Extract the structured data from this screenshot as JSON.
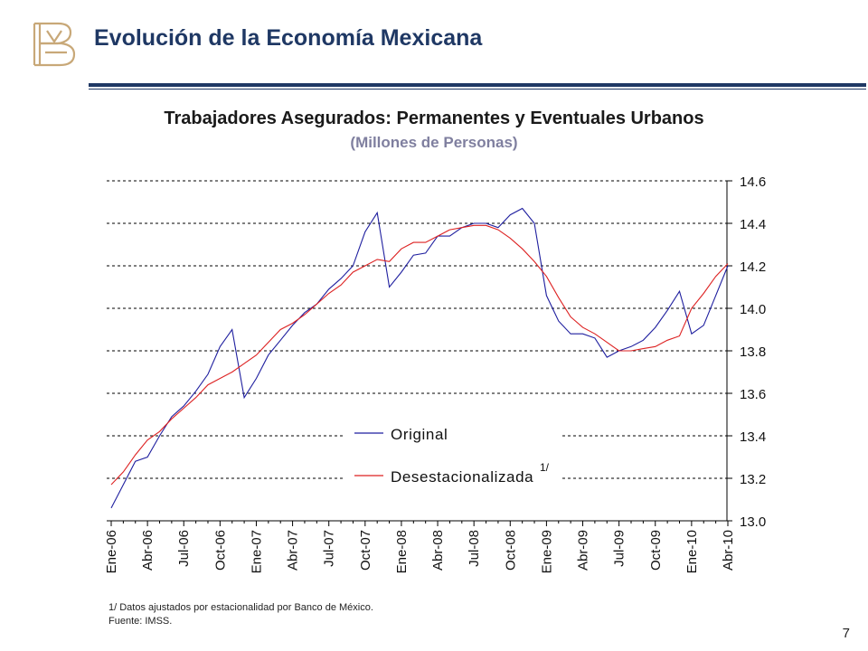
{
  "header": {
    "title": "Evolución de la Economía Mexicana",
    "logo_icon": "banco-de-mexico-monogram-icon",
    "accent_color": "#1f3864"
  },
  "chart_data": {
    "type": "line",
    "title": "Trabajadores  Asegurados: Permanentes y Eventuales Urbanos",
    "subtitle": "(Millones de Personas)",
    "ylim": [
      13.0,
      14.6
    ],
    "yticks": [
      "14.6",
      "14.4",
      "14.2",
      "14.0",
      "13.8",
      "13.6",
      "13.4",
      "13.2",
      "13.0"
    ],
    "y_axis_side": "right",
    "grid": "horizontal-dashed",
    "legend_placement": "bottom-left",
    "x_tick_labels": [
      "Ene-06",
      "Abr-06",
      "Jul-06",
      "Oct-06",
      "Ene-07",
      "Abr-07",
      "Jul-07",
      "Oct-07",
      "Ene-08",
      "Abr-08",
      "Jul-08",
      "Oct-08",
      "Ene-09",
      "Abr-09",
      "Jul-09",
      "Oct-09",
      "Ene-10",
      "Abr-10"
    ],
    "x": [
      "Ene-06",
      "Feb-06",
      "Mar-06",
      "Abr-06",
      "May-06",
      "Jun-06",
      "Jul-06",
      "Ago-06",
      "Sep-06",
      "Oct-06",
      "Nov-06",
      "Dic-06",
      "Ene-07",
      "Feb-07",
      "Mar-07",
      "Abr-07",
      "May-07",
      "Jun-07",
      "Jul-07",
      "Ago-07",
      "Sep-07",
      "Oct-07",
      "Nov-07",
      "Dic-07",
      "Ene-08",
      "Feb-08",
      "Mar-08",
      "Abr-08",
      "May-08",
      "Jun-08",
      "Jul-08",
      "Ago-08",
      "Sep-08",
      "Oct-08",
      "Nov-08",
      "Dic-08",
      "Ene-09",
      "Feb-09",
      "Mar-09",
      "Abr-09",
      "May-09",
      "Jun-09",
      "Jul-09",
      "Ago-09",
      "Sep-09",
      "Oct-09",
      "Nov-09",
      "Dic-09",
      "Ene-10",
      "Feb-10",
      "Mar-10",
      "Abr-10"
    ],
    "series": [
      {
        "name": "Original",
        "color": "#1f1f9f",
        "values": [
          13.06,
          13.17,
          13.28,
          13.3,
          13.4,
          13.49,
          13.54,
          13.61,
          13.69,
          13.82,
          13.9,
          13.58,
          13.67,
          13.78,
          13.85,
          13.92,
          13.98,
          14.02,
          14.09,
          14.14,
          14.2,
          14.36,
          14.45,
          14.1,
          14.17,
          14.25,
          14.26,
          14.34,
          14.34,
          14.38,
          14.4,
          14.4,
          14.38,
          14.44,
          14.47,
          14.4,
          14.06,
          13.94,
          13.88,
          13.88,
          13.86,
          13.77,
          13.8,
          13.82,
          13.85,
          13.91,
          13.99,
          14.08,
          13.88,
          13.92,
          14.06,
          14.2
        ]
      },
      {
        "name": "Desestacionalizada",
        "color": "#dd2222",
        "values": [
          13.17,
          13.23,
          13.31,
          13.38,
          13.42,
          13.48,
          13.53,
          13.58,
          13.64,
          13.67,
          13.7,
          13.74,
          13.78,
          13.84,
          13.9,
          13.93,
          13.97,
          14.02,
          14.07,
          14.11,
          14.17,
          14.2,
          14.23,
          14.22,
          14.28,
          14.31,
          14.31,
          14.34,
          14.37,
          14.38,
          14.39,
          14.39,
          14.37,
          14.33,
          14.28,
          14.22,
          14.15,
          14.05,
          13.96,
          13.91,
          13.88,
          13.84,
          13.8,
          13.8,
          13.81,
          13.82,
          13.85,
          13.87,
          14.0,
          14.07,
          14.15,
          14.21
        ]
      }
    ],
    "legend_footnote_mark": "1/"
  },
  "footnotes": [
    "1/ Datos ajustados por estacionalidad por Banco de México.",
    "Fuente: IMSS."
  ],
  "page_number": "7"
}
